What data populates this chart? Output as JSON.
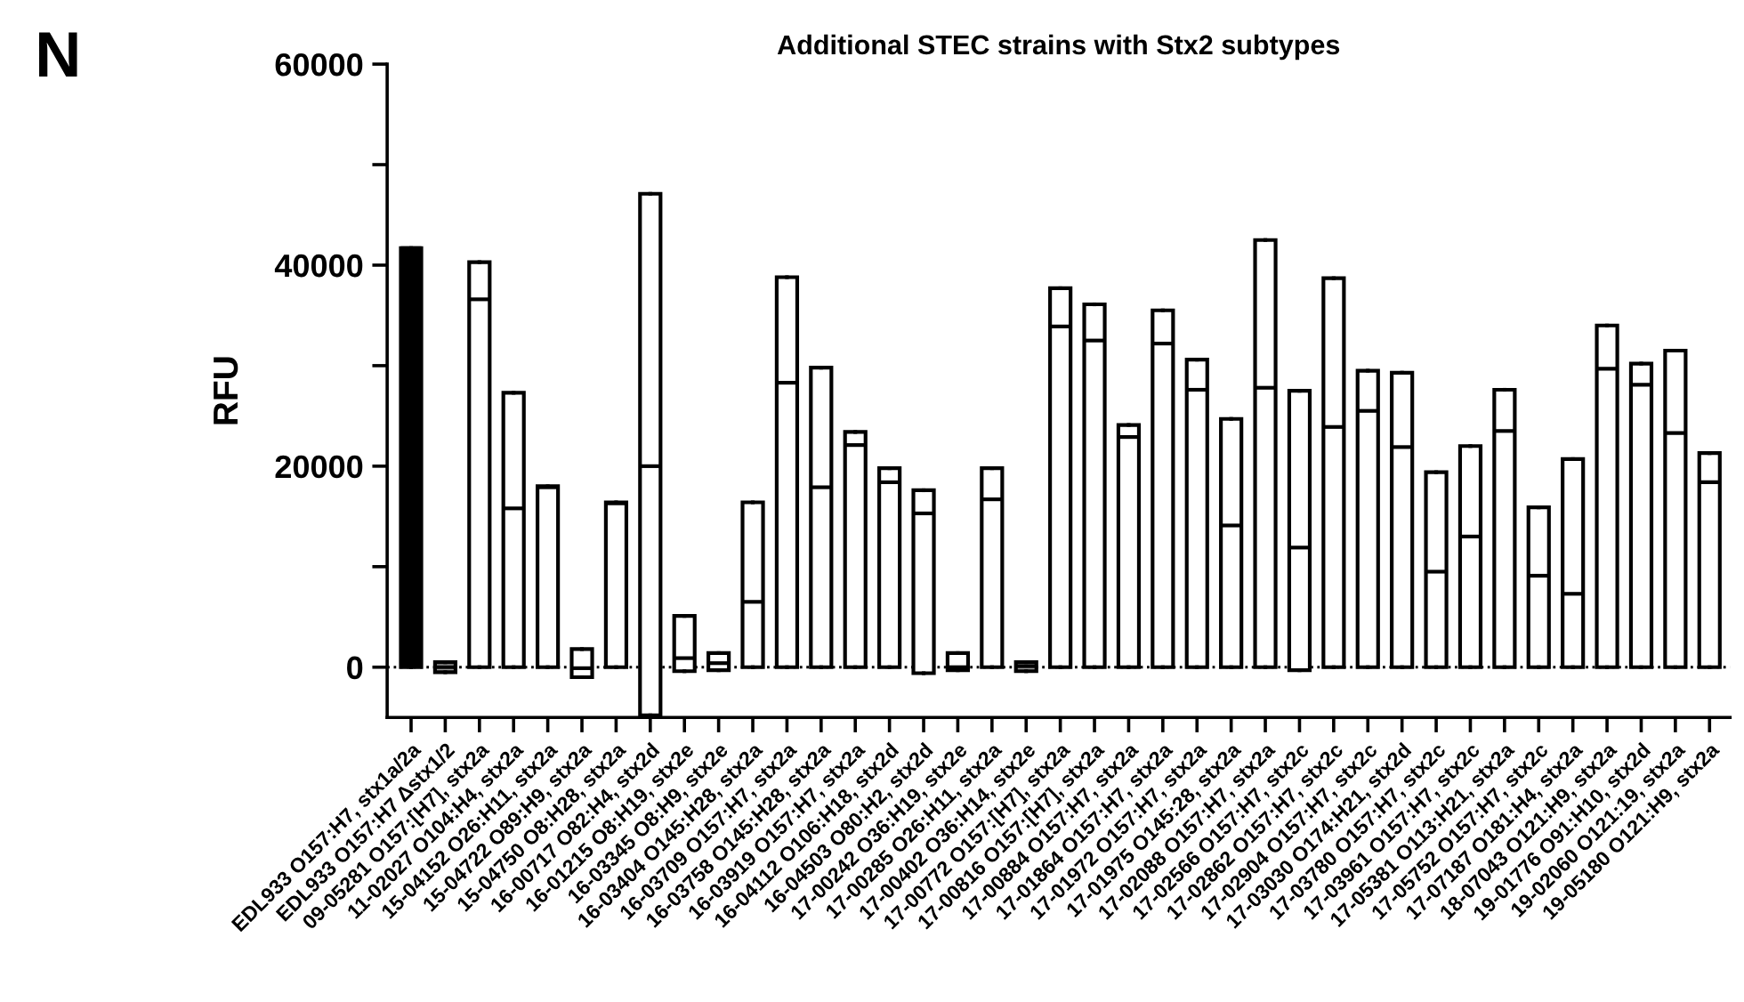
{
  "chart_data": {
    "type": "box",
    "title": "Additional STEC strains with Stx2 subtypes",
    "ylabel": "RFU",
    "annotations": [
      "N"
    ],
    "categories": [
      "EDL933 O157:H7, stx1a/2a",
      "EDL933 O157:H7 Δstx1/2",
      "09-05281 O157:[H7], stx2a",
      "11-02027 O104:H4, stx2a",
      "15-04152 O26:H11, stx2a",
      "15-04722 O89:H9, stx2a",
      "15-04750 O8:H28, stx2a",
      "16-00717 O82:H4, stx2d",
      "16-01215 O8:H19, stx2e",
      "16-03345 O8:H9, stx2e",
      "16-03404 O145:H28, stx2a",
      "16-03709 O157:H7, stx2a",
      "16-03758 O145:H28, stx2a",
      "16-03919 O157:H7, stx2a",
      "16-04112 O106:H18, stx2d",
      "16-04503 O80:H2, stx2d",
      "17-00242 O36:H19, stx2e",
      "17-00285 O26:H11, stx2a",
      "17-00402 O36:H14, stx2e",
      "17-00772 O157:[H7], stx2a",
      "17-00816 O157:[H7], stx2a",
      "17-00884 O157:H7, stx2a",
      "17-01864 O157:H7, stx2a",
      "17-01972 O157:H7, stx2a",
      "17-01975 O145:28, stx2a",
      "17-02088 O157:H7, stx2a",
      "17-02566 O157:H7, stx2c",
      "17-02862 O157:H7, stx2c",
      "17-02904 O157:H7, stx2c",
      "17-03030 O174:H21, stx2d",
      "17-03780 O157:H7, stx2c",
      "17-03961 O157:H7, stx2c",
      "17-05381 O113:H21, stx2a",
      "17-05752 O157:H7, stx2c",
      "17-07187 O181:H4, stx2a",
      "18-07043 O121:H9, stx2a",
      "19-01776 O91:H10, stx2d",
      "19-02060 O121:19, stx2a",
      "19-05180 O121:H9, stx2a"
    ],
    "colors": [
      "#000000",
      "#999999",
      "#ffffff",
      "#ffffff",
      "#ffffff",
      "#ffffff",
      "#ffffff",
      "#ffffff",
      "#ffffff",
      "#ffffff",
      "#ffffff",
      "#ffffff",
      "#ffffff",
      "#ffffff",
      "#ffffff",
      "#ffffff",
      "#ffffff",
      "#ffffff",
      "#999999",
      "#ffffff",
      "#ffffff",
      "#ffffff",
      "#ffffff",
      "#ffffff",
      "#ffffff",
      "#ffffff",
      "#ffffff",
      "#ffffff",
      "#ffffff",
      "#ffffff",
      "#ffffff",
      "#ffffff",
      "#ffffff",
      "#ffffff",
      "#ffffff",
      "#ffffff",
      "#ffffff",
      "#ffffff",
      "#ffffff"
    ],
    "boxes": [
      {
        "low": 0,
        "q1": 0,
        "median": 41700,
        "q3": 41700,
        "high": 41700
      },
      {
        "low": -500,
        "q1": -500,
        "median": 0,
        "q3": 500,
        "high": 500
      },
      {
        "low": 0,
        "q1": 0,
        "median": 36600,
        "q3": 40300,
        "high": 40300
      },
      {
        "low": 0,
        "q1": 0,
        "median": 15800,
        "q3": 27300,
        "high": 27300
      },
      {
        "low": 0,
        "q1": 0,
        "median": 17900,
        "q3": 18000,
        "high": 18000
      },
      {
        "low": -1000,
        "q1": -1000,
        "median": -100,
        "q3": 1800,
        "high": 1800
      },
      {
        "low": 0,
        "q1": 0,
        "median": 16300,
        "q3": 16400,
        "high": 16400
      },
      {
        "low": -4800,
        "q1": -4800,
        "median": 20000,
        "q3": 47100,
        "high": 47100
      },
      {
        "low": -400,
        "q1": -400,
        "median": 900,
        "q3": 5100,
        "high": 5100
      },
      {
        "low": -300,
        "q1": -300,
        "median": 400,
        "q3": 1400,
        "high": 1400
      },
      {
        "low": 0,
        "q1": 0,
        "median": 6500,
        "q3": 16400,
        "high": 16400
      },
      {
        "low": 0,
        "q1": 0,
        "median": 28300,
        "q3": 38800,
        "high": 38800
      },
      {
        "low": 0,
        "q1": 0,
        "median": 17900,
        "q3": 29800,
        "high": 29800
      },
      {
        "low": 0,
        "q1": 0,
        "median": 22100,
        "q3": 23400,
        "high": 23400
      },
      {
        "low": 0,
        "q1": 0,
        "median": 18400,
        "q3": 19800,
        "high": 19800
      },
      {
        "low": -600,
        "q1": -600,
        "median": 15300,
        "q3": 17600,
        "high": 17600
      },
      {
        "low": -300,
        "q1": -300,
        "median": 0,
        "q3": 1400,
        "high": 1400
      },
      {
        "low": 0,
        "q1": 0,
        "median": 16700,
        "q3": 19800,
        "high": 19800
      },
      {
        "low": -400,
        "q1": -400,
        "median": 100,
        "q3": 500,
        "high": 500
      },
      {
        "low": 0,
        "q1": 0,
        "median": 33900,
        "q3": 37700,
        "high": 37700
      },
      {
        "low": 0,
        "q1": 0,
        "median": 32500,
        "q3": 36100,
        "high": 36100
      },
      {
        "low": 0,
        "q1": 0,
        "median": 22900,
        "q3": 24100,
        "high": 24100
      },
      {
        "low": 0,
        "q1": 0,
        "median": 32200,
        "q3": 35500,
        "high": 35500
      },
      {
        "low": 0,
        "q1": 0,
        "median": 27600,
        "q3": 30600,
        "high": 30600
      },
      {
        "low": 0,
        "q1": 0,
        "median": 14100,
        "q3": 24700,
        "high": 24700
      },
      {
        "low": 0,
        "q1": 0,
        "median": 27800,
        "q3": 42500,
        "high": 42500
      },
      {
        "low": -300,
        "q1": -300,
        "median": 11900,
        "q3": 27500,
        "high": 27500
      },
      {
        "low": 0,
        "q1": 0,
        "median": 23900,
        "q3": 38700,
        "high": 38700
      },
      {
        "low": 0,
        "q1": 0,
        "median": 25500,
        "q3": 29500,
        "high": 29500
      },
      {
        "low": 0,
        "q1": 0,
        "median": 21900,
        "q3": 29300,
        "high": 29300
      },
      {
        "low": 0,
        "q1": 0,
        "median": 9500,
        "q3": 19400,
        "high": 19400
      },
      {
        "low": 0,
        "q1": 0,
        "median": 13000,
        "q3": 22000,
        "high": 22000
      },
      {
        "low": 0,
        "q1": 0,
        "median": 23500,
        "q3": 27600,
        "high": 27600
      },
      {
        "low": 0,
        "q1": 0,
        "median": 9100,
        "q3": 15900,
        "high": 15900
      },
      {
        "low": 0,
        "q1": 0,
        "median": 7300,
        "q3": 20700,
        "high": 20700
      },
      {
        "low": 0,
        "q1": 0,
        "median": 29700,
        "q3": 34000,
        "high": 34000
      },
      {
        "low": 0,
        "q1": 0,
        "median": 28100,
        "q3": 30200,
        "high": 30200
      },
      {
        "low": 0,
        "q1": 0,
        "median": 23300,
        "q3": 31500,
        "high": 31500
      },
      {
        "low": 0,
        "q1": 0,
        "median": 18400,
        "q3": 21300,
        "high": 21300
      }
    ],
    "ylim": [
      -5000,
      60000
    ],
    "yticks": [
      0,
      {
        "value": 10000,
        "label": null
      },
      20000,
      {
        "value": 30000,
        "label": null
      },
      40000,
      {
        "value": 50000,
        "label": null
      },
      60000
    ],
    "ref_lines": [
      {
        "axis": "y",
        "value": 0,
        "line_style": "dotted",
        "color": "#000000"
      }
    ],
    "grid": false,
    "legend": false
  }
}
